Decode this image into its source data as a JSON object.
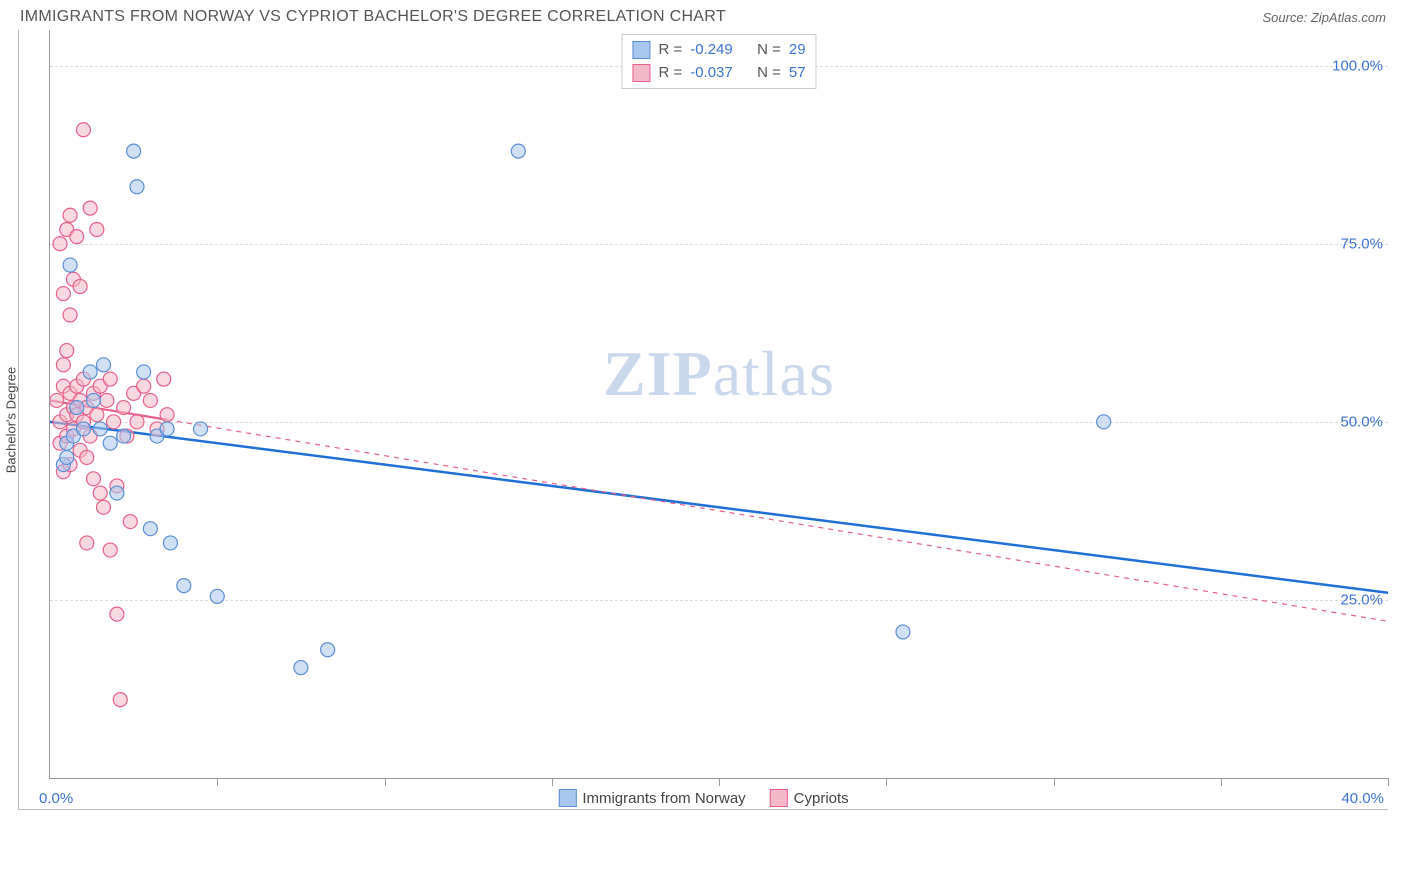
{
  "header": {
    "title": "IMMIGRANTS FROM NORWAY VS CYPRIOT BACHELOR'S DEGREE CORRELATION CHART",
    "source_prefix": "Source: ",
    "source_name": "ZipAtlas.com"
  },
  "watermark": {
    "zip": "ZIP",
    "atlas": "atlas"
  },
  "chart": {
    "type": "scatter",
    "xlim": [
      0,
      40
    ],
    "ylim": [
      0,
      105
    ],
    "x_min_label": "0.0%",
    "x_max_label": "40.0%",
    "xtick_positions": [
      5,
      10,
      15,
      20,
      25,
      30,
      35,
      40
    ],
    "ylabel": "Bachelor's Degree",
    "ygrid": [
      {
        "v": 25,
        "label": "25.0%"
      },
      {
        "v": 50,
        "label": "50.0%"
      },
      {
        "v": 75,
        "label": "75.0%"
      },
      {
        "v": 100,
        "label": "100.0%"
      }
    ],
    "marker_radius": 7,
    "marker_stroke_width": 1.2,
    "series": [
      {
        "key": "norway",
        "label": "Immigrants from Norway",
        "fill": "#a9c6ec",
        "stroke": "#5a8fd6",
        "fill_opacity": 0.55,
        "R": "-0.249",
        "N": "29",
        "trend": {
          "x1": 0,
          "y1": 50,
          "x2": 40,
          "y2": 26,
          "color": "#1f6fd6",
          "width": 2.5,
          "dash": "none"
        },
        "points": [
          [
            0.4,
            44
          ],
          [
            0.5,
            45
          ],
          [
            0.5,
            47
          ],
          [
            0.6,
            72
          ],
          [
            0.7,
            48
          ],
          [
            0.8,
            52
          ],
          [
            1.0,
            49
          ],
          [
            1.2,
            57
          ],
          [
            1.3,
            53
          ],
          [
            1.5,
            49
          ],
          [
            1.6,
            58
          ],
          [
            1.8,
            47
          ],
          [
            2.0,
            40
          ],
          [
            2.2,
            48
          ],
          [
            2.5,
            88
          ],
          [
            2.6,
            83
          ],
          [
            2.8,
            57
          ],
          [
            3.0,
            35
          ],
          [
            3.2,
            48
          ],
          [
            3.5,
            49
          ],
          [
            3.6,
            33
          ],
          [
            4.0,
            27
          ],
          [
            4.5,
            49
          ],
          [
            5.0,
            25.5
          ],
          [
            7.5,
            15.5
          ],
          [
            8.3,
            18
          ],
          [
            14.0,
            88
          ],
          [
            25.5,
            20.5
          ],
          [
            31.5,
            50
          ]
        ]
      },
      {
        "key": "cypriots",
        "label": "Cypriots",
        "fill": "#f4b9c9",
        "stroke": "#e85f8b",
        "fill_opacity": 0.55,
        "R": "-0.037",
        "N": "57",
        "trend": {
          "x1": 0,
          "y1": 53,
          "x2": 40,
          "y2": 22,
          "color": "#e85f8b",
          "width": 1.2,
          "dash": "5,5",
          "solid_until": 3.5
        },
        "points": [
          [
            0.2,
            53
          ],
          [
            0.3,
            50
          ],
          [
            0.3,
            47
          ],
          [
            0.4,
            55
          ],
          [
            0.4,
            58
          ],
          [
            0.4,
            43
          ],
          [
            0.5,
            51
          ],
          [
            0.5,
            48
          ],
          [
            0.5,
            77
          ],
          [
            0.6,
            54
          ],
          [
            0.6,
            79
          ],
          [
            0.6,
            44
          ],
          [
            0.7,
            52
          ],
          [
            0.7,
            49
          ],
          [
            0.7,
            70
          ],
          [
            0.8,
            55
          ],
          [
            0.8,
            51
          ],
          [
            0.8,
            76
          ],
          [
            0.9,
            69
          ],
          [
            0.9,
            53
          ],
          [
            0.9,
            46
          ],
          [
            1.0,
            56
          ],
          [
            1.0,
            50
          ],
          [
            1.0,
            91
          ],
          [
            1.1,
            52
          ],
          [
            1.1,
            45
          ],
          [
            1.2,
            80
          ],
          [
            1.2,
            48
          ],
          [
            1.3,
            54
          ],
          [
            1.3,
            42
          ],
          [
            1.4,
            77
          ],
          [
            1.4,
            51
          ],
          [
            1.5,
            55
          ],
          [
            1.5,
            40
          ],
          [
            1.6,
            38
          ],
          [
            1.7,
            53
          ],
          [
            1.8,
            56
          ],
          [
            1.8,
            32
          ],
          [
            1.9,
            50
          ],
          [
            2.0,
            23
          ],
          [
            2.0,
            41
          ],
          [
            2.1,
            11
          ],
          [
            2.2,
            52
          ],
          [
            2.3,
            48
          ],
          [
            2.4,
            36
          ],
          [
            2.5,
            54
          ],
          [
            2.6,
            50
          ],
          [
            2.8,
            55
          ],
          [
            3.0,
            53
          ],
          [
            3.2,
            49
          ],
          [
            3.4,
            56
          ],
          [
            3.5,
            51
          ],
          [
            0.3,
            75
          ],
          [
            0.4,
            68
          ],
          [
            0.5,
            60
          ],
          [
            0.6,
            65
          ],
          [
            1.1,
            33
          ]
        ]
      }
    ],
    "legend_top_stats_label_R": "R =",
    "legend_top_stats_label_N": "N ="
  }
}
